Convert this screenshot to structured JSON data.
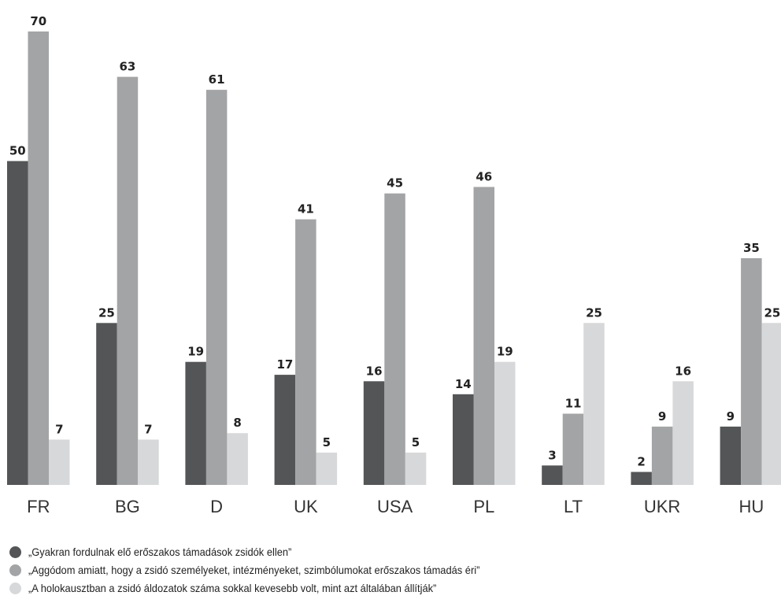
{
  "chart_data": {
    "type": "bar",
    "categories": [
      "FR",
      "BG",
      "D",
      "UK",
      "USA",
      "PL",
      "LT",
      "UKR",
      "HU"
    ],
    "series": [
      {
        "name": "„Gyakran fordulnak elő erőszakos támadások zsidók ellen”",
        "color": "#545557",
        "values": [
          50,
          25,
          19,
          17,
          16,
          14,
          3,
          2,
          9
        ]
      },
      {
        "name": "„Aggódom amiatt, hogy a zsidó személyeket, intézményeket, szimbólumokat erőszakos támadás éri”",
        "color": "#a3a4a6",
        "values": [
          70,
          63,
          61,
          41,
          45,
          46,
          11,
          9,
          35
        ]
      },
      {
        "name": "„A holokausztban a zsidó áldozatok száma sokkal kevesebb volt, mint azt általában állítják”",
        "color": "#d7d8d9",
        "values": [
          7,
          7,
          8,
          5,
          5,
          19,
          25,
          16,
          25
        ]
      }
    ],
    "ylim": [
      0,
      70
    ],
    "grid": false,
    "legend": "bottom-left",
    "title": "",
    "xlabel": "",
    "ylabel": ""
  }
}
